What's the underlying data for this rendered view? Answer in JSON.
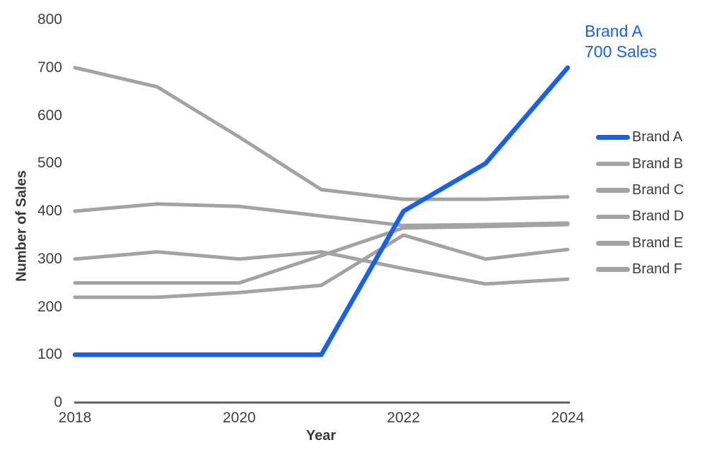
{
  "colors": {
    "accent_blue": "#1661F2",
    "series_gray": "#A3A3A3",
    "axis_line": "#5E5E5E",
    "text_dark": "#3C3C3C"
  },
  "chart_data": {
    "type": "line",
    "title": "",
    "xlabel": "Year",
    "ylabel": "Number of Sales",
    "x": [
      2018,
      2019,
      2020,
      2021,
      2022,
      2023,
      2024
    ],
    "xticks": [
      2018,
      2020,
      2022,
      2024
    ],
    "yticks": [
      0,
      100,
      200,
      300,
      400,
      500,
      600,
      700,
      800
    ],
    "xlim": [
      2018,
      2024
    ],
    "ylim": [
      0,
      800
    ],
    "grid": false,
    "legend_position": "right",
    "series": [
      {
        "name": "Brand A",
        "color": "#1661F2",
        "width": 6.5,
        "emphasis": true,
        "values": [
          100,
          100,
          100,
          100,
          400,
          500,
          700
        ]
      },
      {
        "name": "Brand B",
        "color": "#A3A3A3",
        "width": 5,
        "emphasis": false,
        "values": [
          700,
          660,
          555,
          445,
          425,
          425,
          430
        ]
      },
      {
        "name": "Brand C",
        "color": "#A3A3A3",
        "width": 5,
        "emphasis": false,
        "values": [
          400,
          415,
          410,
          390,
          370,
          372,
          375
        ]
      },
      {
        "name": "Brand D",
        "color": "#A3A3A3",
        "width": 5,
        "emphasis": false,
        "values": [
          300,
          315,
          300,
          315,
          280,
          248,
          258
        ]
      },
      {
        "name": "Brand E",
        "color": "#A3A3A3",
        "width": 5,
        "emphasis": false,
        "values": [
          250,
          250,
          250,
          307,
          365,
          368,
          372
        ]
      },
      {
        "name": "Brand F",
        "color": "#A3A3A3",
        "width": 5,
        "emphasis": false,
        "values": [
          220,
          220,
          230,
          245,
          350,
          300,
          320
        ]
      }
    ],
    "annotation": {
      "lines": [
        "Brand A",
        "700 Sales"
      ],
      "color": "#1661F2"
    }
  }
}
